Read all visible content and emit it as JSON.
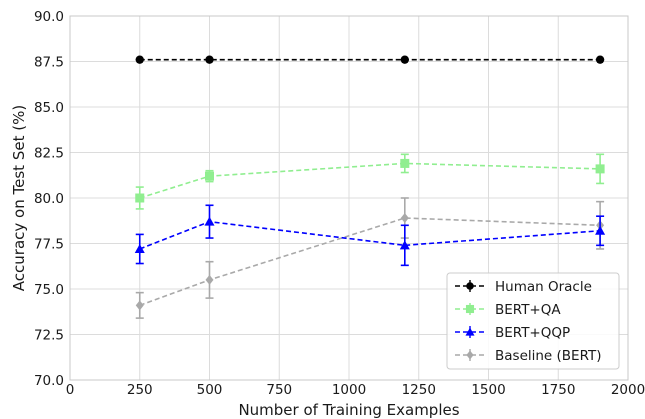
{
  "chart_data": {
    "type": "line",
    "title": "",
    "xlabel": "Number of Training Examples",
    "ylabel": "Accuracy on Test Set (%)",
    "xlim": [
      0,
      2000
    ],
    "ylim": [
      70.0,
      90.0
    ],
    "xticks": [
      0,
      250,
      500,
      750,
      1000,
      1250,
      1500,
      1750,
      2000
    ],
    "xtick_labels": [
      "0",
      "250",
      "500",
      "750",
      "1000",
      "1250",
      "1500",
      "1750",
      "2000"
    ],
    "yticks": [
      70.0,
      72.5,
      75.0,
      77.5,
      80.0,
      82.5,
      85.0,
      87.5,
      90.0
    ],
    "ytick_labels": [
      "70.0",
      "72.5",
      "75.0",
      "77.5",
      "80.0",
      "82.5",
      "85.0",
      "87.5",
      "90.0"
    ],
    "grid": true,
    "legend_position": "bottom-right",
    "x": [
      250,
      500,
      1200,
      1900
    ],
    "series": [
      {
        "name": "Human Oracle",
        "color": "#000000",
        "marker": "circle",
        "values": [
          87.6,
          87.6,
          87.6,
          87.6
        ],
        "errors": [
          0,
          0,
          0,
          0
        ]
      },
      {
        "name": "BERT+QA",
        "color": "#90ee90",
        "marker": "square",
        "values": [
          80.0,
          81.2,
          81.9,
          81.6
        ],
        "errors": [
          0.6,
          0.3,
          0.5,
          0.8
        ]
      },
      {
        "name": "BERT+QQP",
        "color": "#0000ff",
        "marker": "triangle",
        "values": [
          77.2,
          78.7,
          77.4,
          78.2
        ],
        "errors": [
          0.8,
          0.9,
          1.1,
          0.8
        ]
      },
      {
        "name": "Baseline (BERT)",
        "color": "#a9a9a9",
        "marker": "diamond",
        "values": [
          74.1,
          75.5,
          78.9,
          78.5
        ],
        "errors": [
          0.7,
          1.0,
          1.1,
          1.3
        ]
      }
    ]
  }
}
